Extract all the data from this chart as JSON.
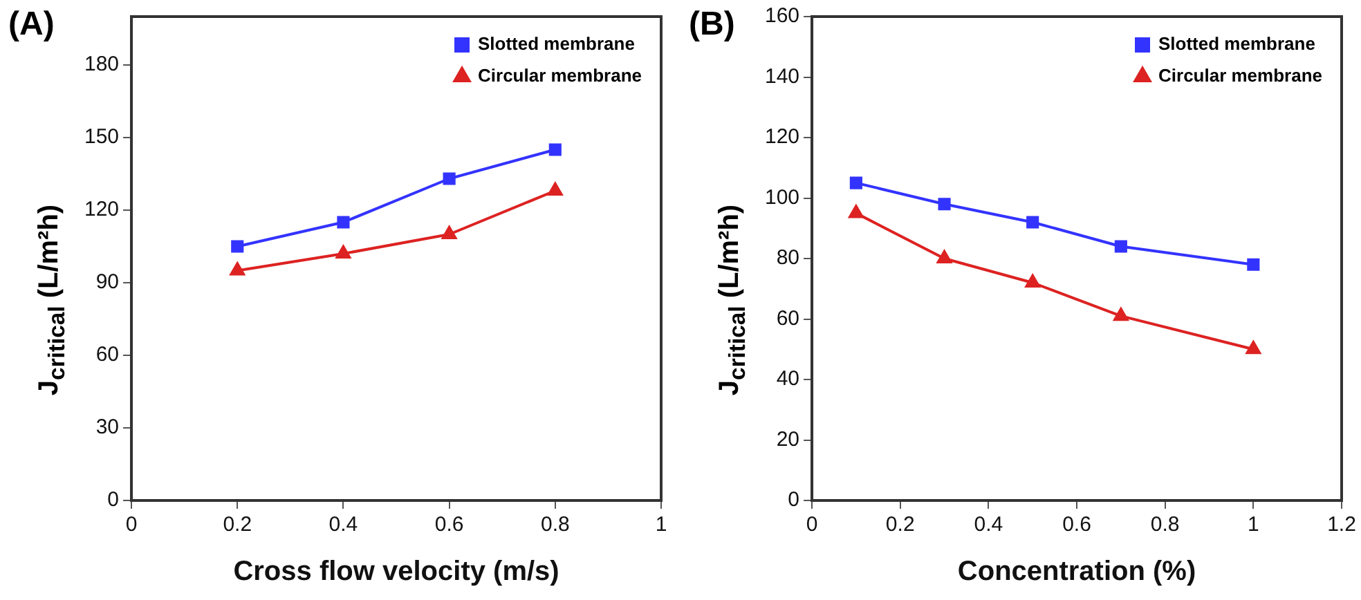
{
  "chart_data": [
    {
      "type": "line",
      "annotations": [
        "(A)"
      ],
      "xlabel": "Cross flow velocity (m/s)",
      "ylabel": "J$_{critical}$ (L/m²h)",
      "xlim": [
        0,
        1
      ],
      "xticks": [
        0,
        0.2,
        0.4,
        0.6,
        0.8,
        1
      ],
      "ylim": [
        0,
        200
      ],
      "yticks": [
        0,
        30,
        60,
        90,
        120,
        150,
        180
      ],
      "grid": false,
      "legend": "top right",
      "series": [
        {
          "name": "Slotted membrane",
          "color": "#3333ff",
          "marker": "square",
          "x": [
            0.2,
            0.4,
            0.6,
            0.8
          ],
          "values": [
            105,
            115,
            133,
            145
          ]
        },
        {
          "name": "Circular membrane",
          "color": "#dd2222",
          "marker": "triangle",
          "x": [
            0.2,
            0.4,
            0.6,
            0.8
          ],
          "values": [
            95,
            102,
            110,
            128
          ]
        }
      ]
    },
    {
      "type": "line",
      "annotations": [
        "(B)"
      ],
      "xlabel": "Concentration (%)",
      "ylabel": "J$_{critical}$ (L/m²h)",
      "xlim": [
        0,
        1.2
      ],
      "xticks": [
        0,
        0.2,
        0.4,
        0.6,
        0.8,
        1,
        1.2
      ],
      "ylim": [
        0,
        160
      ],
      "yticks": [
        0,
        20,
        40,
        60,
        80,
        100,
        120,
        140,
        160
      ],
      "grid": false,
      "legend": "top right",
      "series": [
        {
          "name": "Slotted membrane",
          "color": "#3333ff",
          "marker": "square",
          "x": [
            0.1,
            0.3,
            0.5,
            0.7,
            1
          ],
          "values": [
            105,
            98,
            92,
            84,
            78
          ]
        },
        {
          "name": "Circular membrane",
          "color": "#dd2222",
          "marker": "triangle",
          "x": [
            0.1,
            0.3,
            0.5,
            0.7,
            1
          ],
          "values": [
            95,
            80,
            72,
            61,
            50
          ]
        }
      ]
    }
  ]
}
